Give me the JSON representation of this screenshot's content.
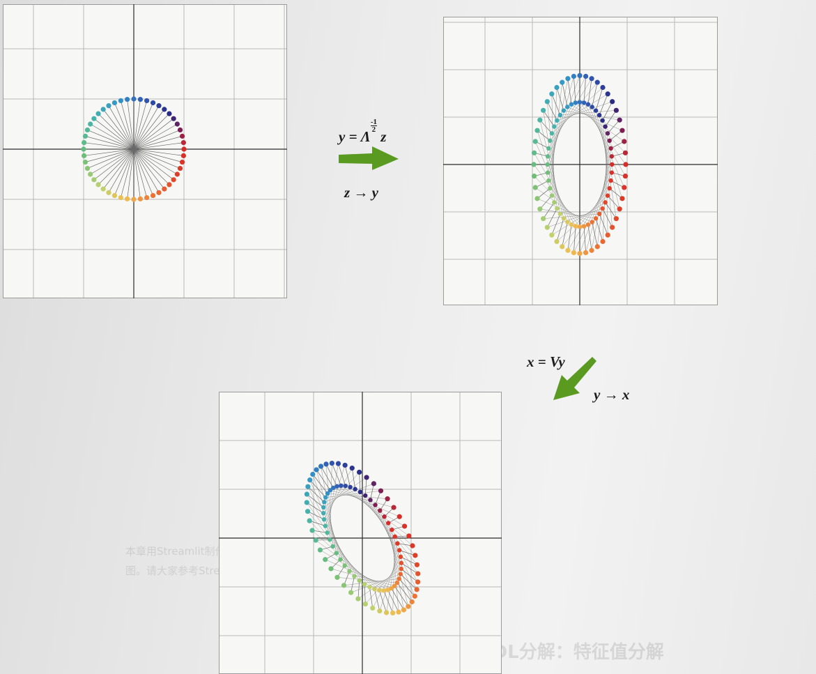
{
  "formulas": {
    "step1_lhs": "y = ",
    "step1_symbol": "Λ",
    "step1_exp_num": "-1",
    "step1_exp_den": "2",
    "step1_rhs": " z",
    "step1_map": "z → y",
    "step2": "x = Vy",
    "step2_map": "y → x"
  },
  "colors": {
    "arrow": "#5a9a20",
    "grid": "#b8b8b8",
    "axis": "#2a2a2a",
    "spoke": "#6a6a6a"
  },
  "panels": [
    {
      "name": "unit-circle-z",
      "ring_radii": [
        1
      ],
      "points_per_ring": 48,
      "center_spokes": true
    },
    {
      "name": "scaled-y",
      "scale": [
        0.75,
        1.45
      ],
      "ring_radii": [
        1,
        0.7
      ],
      "points_per_ring": 48
    },
    {
      "name": "rotated-x",
      "scale": [
        0.75,
        1.45
      ],
      "rotation_deg": 30,
      "ring_radii": [
        1,
        0.7
      ],
      "points_per_ring": 48
    }
  ]
}
